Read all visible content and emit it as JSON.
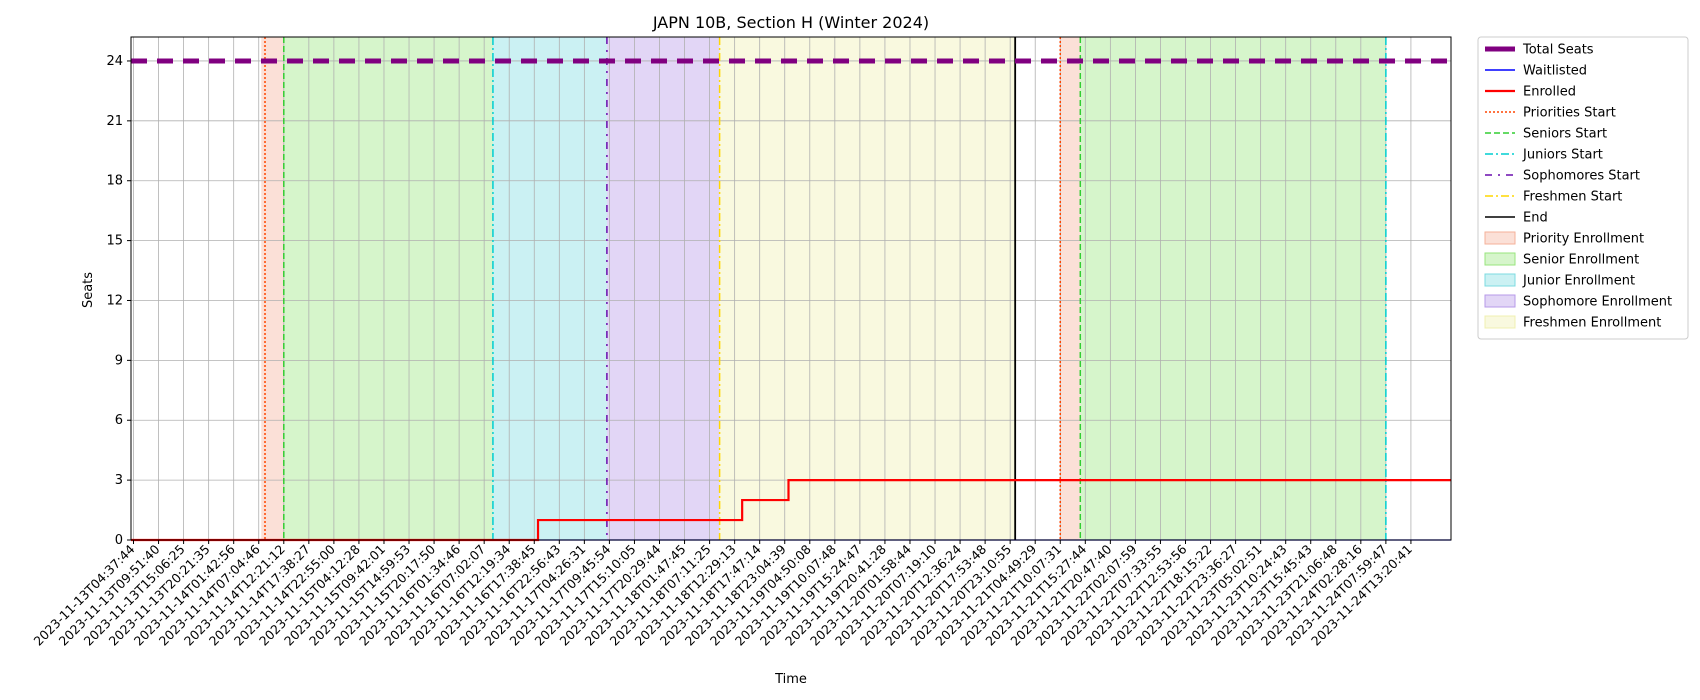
{
  "chart_data": {
    "type": "line",
    "title": "JAPN 10B, Section H (Winter 2024)",
    "xlabel": "Time",
    "ylabel": "Seats",
    "ylim": [
      0,
      25.2
    ],
    "yticks": [
      0,
      3,
      6,
      9,
      12,
      15,
      18,
      21,
      24
    ],
    "grid": true,
    "legend_position": "outside right, top",
    "x_tick_labels": [
      "2023-11-13T04:37:44",
      "2023-11-13T09:51:40",
      "2023-11-13T15:06:25",
      "2023-11-13T20:21:35",
      "2023-11-14T01:42:56",
      "2023-11-14T07:04:46",
      "2023-11-14T12:21:12",
      "2023-11-14T17:38:27",
      "2023-11-14T22:55:00",
      "2023-11-15T04:12:28",
      "2023-11-15T09:42:01",
      "2023-11-15T14:59:53",
      "2023-11-15T20:17:50",
      "2023-11-16T01:34:46",
      "2023-11-16T07:02:07",
      "2023-11-16T12:19:34",
      "2023-11-16T17:38:45",
      "2023-11-16T22:56:43",
      "2023-11-17T04:26:31",
      "2023-11-17T09:45:54",
      "2023-11-17T15:10:05",
      "2023-11-17T20:29:44",
      "2023-11-18T01:47:45",
      "2023-11-18T07:11:25",
      "2023-11-18T12:29:13",
      "2023-11-18T17:47:14",
      "2023-11-18T23:04:39",
      "2023-11-19T04:50:08",
      "2023-11-19T10:07:48",
      "2023-11-19T15:24:47",
      "2023-11-19T20:41:28",
      "2023-11-20T01:58:44",
      "2023-11-20T07:19:10",
      "2023-11-20T12:36:24",
      "2023-11-20T17:53:48",
      "2023-11-20T23:10:55",
      "2023-11-21T04:49:29",
      "2023-11-21T10:07:31",
      "2023-11-21T15:27:44",
      "2023-11-21T20:47:40",
      "2023-11-22T02:07:59",
      "2023-11-22T07:33:55",
      "2023-11-22T12:53:56",
      "2023-11-22T18:15:22",
      "2023-11-22T23:36:27",
      "2023-11-23T05:02:51",
      "2023-11-23T10:24:43",
      "2023-11-23T15:45:43",
      "2023-11-23T21:06:48",
      "2023-11-24T02:28:16",
      "2023-11-24T07:59:47",
      "2023-11-24T13:20:41"
    ],
    "x_range_ticks": [
      -0.1,
      52.6
    ],
    "series": [
      {
        "name": "Total Seats",
        "color": "#800080",
        "style": "dashed-thick",
        "points": [
          [
            -0.1,
            24
          ],
          [
            52.6,
            24
          ]
        ]
      },
      {
        "name": "Waitlisted",
        "color": "#0000ff",
        "style": "solid",
        "points": [
          [
            -0.1,
            0
          ],
          [
            52.6,
            0
          ]
        ]
      },
      {
        "name": "Enrolled",
        "color": "#ff0000",
        "style": "solid",
        "points": [
          [
            -0.1,
            0
          ],
          [
            16.15,
            0
          ],
          [
            16.15,
            1
          ],
          [
            24.3,
            1
          ],
          [
            24.3,
            2
          ],
          [
            26.15,
            2
          ],
          [
            26.15,
            3
          ],
          [
            52.6,
            3
          ]
        ]
      }
    ],
    "markers": [
      {
        "name": "Priorities Start",
        "color": "#ff4500",
        "style": "dotted",
        "x": [
          5.25,
          37.0
        ]
      },
      {
        "name": "Seniors Start",
        "color": "#32cd32",
        "style": "dashed",
        "x": [
          6.0,
          37.8
        ]
      },
      {
        "name": "Juniors Start",
        "color": "#00ced1",
        "style": "dashdot",
        "x": [
          14.35,
          50.0
        ]
      },
      {
        "name": "Sophomores Start",
        "color": "#6a0dad",
        "style": "loosedashdot",
        "x": [
          18.9
        ]
      },
      {
        "name": "Freshmen Start",
        "color": "#ffd700",
        "style": "dashdot",
        "x": [
          23.4
        ]
      },
      {
        "name": "End",
        "color": "#000000",
        "style": "solid",
        "x": [
          35.2
        ]
      }
    ],
    "periods": [
      {
        "name": "Priority Enrollment",
        "color": "#f4b19a",
        "ranges": [
          [
            5.1,
            6.0
          ],
          [
            37.0,
            37.8
          ]
        ]
      },
      {
        "name": "Senior Enrollment",
        "color": "#98e57e",
        "ranges": [
          [
            6.0,
            14.35
          ],
          [
            37.8,
            50.0
          ]
        ]
      },
      {
        "name": "Junior Enrollment",
        "color": "#7ddbe0",
        "ranges": [
          [
            14.35,
            18.9
          ]
        ]
      },
      {
        "name": "Sophomore Enrollment",
        "color": "#b799e8",
        "ranges": [
          [
            18.9,
            23.4
          ]
        ]
      },
      {
        "name": "Freshmen Enrollment",
        "color": "#f0f0b0",
        "ranges": [
          [
            23.4,
            35.2
          ]
        ]
      }
    ]
  }
}
